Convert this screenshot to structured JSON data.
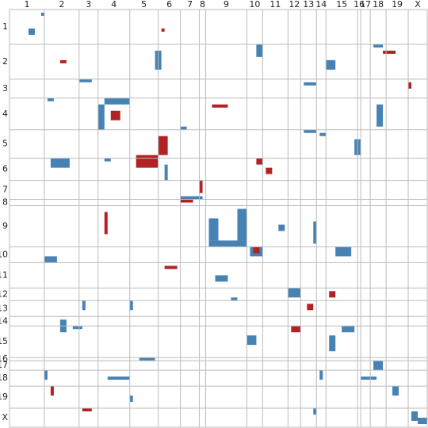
{
  "chart_data": {
    "type": "contact-map",
    "chromosomes": [
      "1",
      "2",
      "3",
      "4",
      "5",
      "6",
      "7",
      "8",
      "9",
      "10",
      "11",
      "12",
      "13",
      "14",
      "15",
      "16",
      "17",
      "18",
      "19",
      "X"
    ],
    "bounds": [
      0,
      11,
      22,
      28,
      38,
      47,
      54,
      60,
      62,
      75,
      80,
      88,
      92,
      97,
      100,
      110,
      111,
      114,
      119,
      126,
      132
    ],
    "grid_color": "#bbbbbb",
    "series": [
      {
        "color": "#4682b4",
        "blocks": [
          [
            6,
            6,
            2,
            2
          ],
          [
            1,
            10,
            1,
            1
          ],
          [
            13,
            46,
            6,
            2
          ],
          [
            11,
            78,
            4,
            2
          ],
          [
            16,
            100,
            3,
            3
          ],
          [
            11,
            115,
            1,
            3
          ],
          [
            22,
            22,
            1,
            4
          ],
          [
            28,
            30,
            2,
            8
          ],
          [
            30,
            28,
            8,
            2
          ],
          [
            23,
            93,
            1,
            4
          ],
          [
            28,
            12,
            1,
            2
          ],
          [
            30,
            116,
            7,
            2
          ],
          [
            37,
            54,
            1,
            2
          ],
          [
            38,
            93,
            1,
            4
          ],
          [
            39,
            98,
            1,
            2
          ],
          [
            41,
            109,
            5,
            2
          ],
          [
            47,
            13,
            3,
            6
          ],
          [
            47,
            30,
            1,
            2
          ],
          [
            49,
            49,
            5,
            1
          ],
          [
            59,
            54,
            1,
            7
          ],
          [
            66,
            63,
            7,
            3
          ],
          [
            73,
            63,
            2,
            12
          ],
          [
            63,
            72,
            10,
            3
          ],
          [
            68,
            85,
            2,
            2
          ],
          [
            67,
            96,
            7,
            1
          ],
          [
            78,
            11,
            2,
            4
          ],
          [
            75,
            76,
            3,
            4
          ],
          [
            75,
            103,
            3,
            5
          ],
          [
            84,
            65,
            2,
            4
          ],
          [
            88,
            88,
            3,
            4
          ],
          [
            91,
            70,
            1,
            2
          ],
          [
            92,
            23,
            3,
            1
          ],
          [
            92,
            38,
            3,
            1
          ],
          [
            98,
            16,
            4,
            2
          ],
          [
            100,
            20,
            1,
            3
          ],
          [
            103,
            75,
            3,
            3
          ],
          [
            103,
            101,
            5,
            2
          ],
          [
            100,
            105,
            2,
            4
          ],
          [
            110,
            41,
            1,
            5
          ],
          [
            116,
            31,
            1,
            7
          ],
          [
            114,
            11,
            3,
            1
          ],
          [
            116,
            111,
            1,
            5
          ],
          [
            111,
            115,
            3,
            3
          ],
          [
            119,
            121,
            3,
            2
          ],
          [
            127,
            127,
            3,
            2
          ],
          [
            129,
            129,
            2,
            3
          ],
          [
            114,
            98,
            3,
            1
          ],
          [
            122,
            38,
            2,
            1
          ],
          [
            126,
            96,
            2,
            1
          ]
        ]
      },
      {
        "color": "#b22222",
        "blocks": [
          [
            13,
            118,
            1,
            4
          ],
          [
            16,
            16,
            1,
            2
          ],
          [
            32,
            32,
            3,
            3
          ],
          [
            30,
            64,
            1,
            5
          ],
          [
            40,
            47,
            6,
            3
          ],
          [
            46,
            40,
            4,
            7
          ],
          [
            54,
            60,
            4,
            1
          ],
          [
            60,
            54,
            1,
            4
          ],
          [
            64,
            30,
            7,
            1
          ],
          [
            47,
            78,
            2,
            2
          ],
          [
            50,
            81,
            2,
            2
          ],
          [
            81,
            49,
            1,
            4
          ],
          [
            75,
            77,
            2,
            2
          ],
          [
            89,
            101,
            2,
            2
          ],
          [
            100,
            89,
            2,
            3
          ],
          [
            119,
            13,
            3,
            1
          ],
          [
            126,
            23,
            1,
            3
          ],
          [
            23,
            126,
            2,
            1
          ],
          [
            6,
            48,
            1,
            1
          ],
          [
            93,
            94,
            2,
            2
          ]
        ]
      }
    ]
  }
}
